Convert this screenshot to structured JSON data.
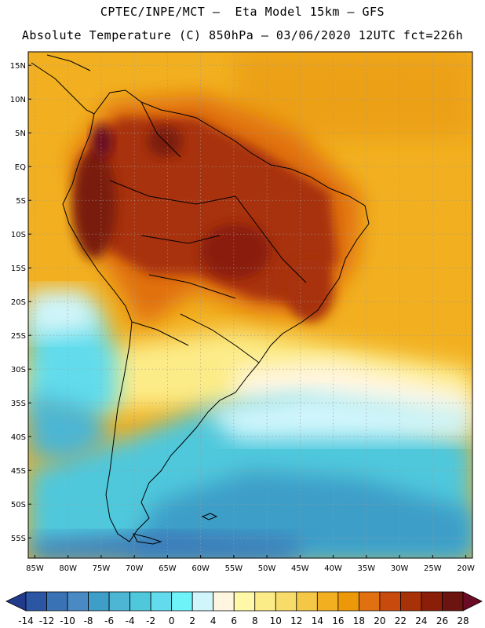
{
  "title_line1": "CPTEC/INPE/MCT –  Eta Model 15km – GFS",
  "title_line2": "Absolute Temperature (C) 850hPa – 03/06/2020 12UTC fct=226h",
  "map": {
    "lon_range": [
      -86,
      -19
    ],
    "lat_range": [
      -58,
      17
    ],
    "lat_ticks": [
      "15N",
      "10N",
      "5N",
      "EQ",
      "5S",
      "10S",
      "15S",
      "20S",
      "25S",
      "30S",
      "35S",
      "40S",
      "45S",
      "50S",
      "55S"
    ],
    "lon_ticks": [
      "85W",
      "80W",
      "75W",
      "70W",
      "65W",
      "60W",
      "55W",
      "50W",
      "45W",
      "40W",
      "35W",
      "30W",
      "25W",
      "20W"
    ],
    "gridlines": true
  },
  "colorbar": {
    "labels": [
      "-14",
      "-12",
      "-10",
      "-8",
      "-6",
      "-4",
      "-2",
      "0",
      "2",
      "4",
      "6",
      "8",
      "10",
      "12",
      "14",
      "16",
      "18",
      "20",
      "22",
      "24",
      "26",
      "28"
    ],
    "colors": [
      "#223a8c",
      "#2b56a4",
      "#3a72b6",
      "#4a8ac4",
      "#3e9ec8",
      "#4cb6d4",
      "#4fc8dc",
      "#62dcec",
      "#6ef4f8",
      "#d0f6fc",
      "#fff6e2",
      "#fff8a8",
      "#fcec88",
      "#f8dc6a",
      "#f4c846",
      "#f2b020",
      "#ec9808",
      "#e07010",
      "#c84a0c",
      "#a83208",
      "#8a1e08",
      "#6c1410",
      "#6a0c24"
    ]
  }
}
